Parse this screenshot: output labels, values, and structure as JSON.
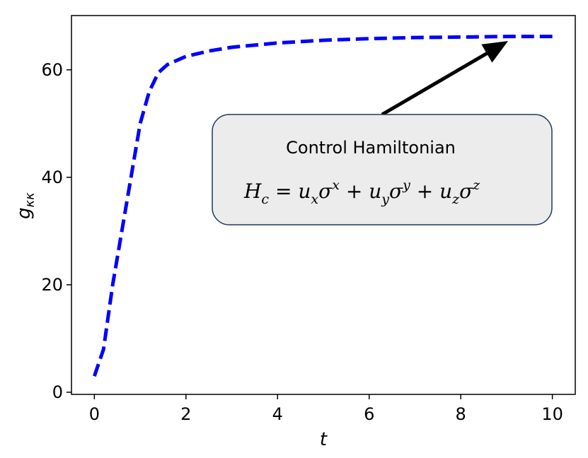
{
  "chart_data": {
    "type": "line",
    "x": [
      0,
      0.2,
      0.4,
      0.6,
      0.8,
      1.0,
      1.2,
      1.4,
      1.6,
      2.0,
      2.5,
      3.0,
      4.0,
      5.0,
      6.0,
      7.0,
      8.0,
      9.0,
      10.0
    ],
    "series": [
      {
        "color": "#0000ff",
        "dash": true,
        "values": [
          3,
          8,
          20,
          30,
          40,
          50,
          56,
          59.5,
          61,
          62.5,
          63.5,
          64.2,
          65,
          65.5,
          65.8,
          66,
          66.1,
          66.2,
          66.2
        ]
      }
    ],
    "xlim": [
      -0.5,
      10.5
    ],
    "ylim": [
      -0.4,
      70.1
    ],
    "xticks": [
      0,
      2,
      4,
      6,
      8,
      10
    ],
    "yticks": [
      0,
      20,
      40,
      60
    ],
    "x_label": "t",
    "y_label": "g",
    "y_label_sub": "κκ",
    "annotation": {
      "text": "Control Hamiltonian",
      "formula": [
        {
          "t": "H",
          "pos": "base"
        },
        {
          "t": "c",
          "pos": "sub"
        },
        {
          "t": " = u",
          "pos": "base"
        },
        {
          "t": "x",
          "pos": "sub"
        },
        {
          "t": "σ",
          "pos": "base"
        },
        {
          "t": "x",
          "pos": "sup"
        },
        {
          "t": " + u",
          "pos": "base"
        },
        {
          "t": "y",
          "pos": "sub"
        },
        {
          "t": "σ",
          "pos": "base"
        },
        {
          "t": "y",
          "pos": "sup"
        },
        {
          "t": " + u",
          "pos": "base"
        },
        {
          "t": "z",
          "pos": "sub"
        },
        {
          "t": "σ",
          "pos": "base"
        },
        {
          "t": "z",
          "pos": "sup"
        }
      ],
      "xy": [
        8.9,
        64.7
      ]
    }
  }
}
